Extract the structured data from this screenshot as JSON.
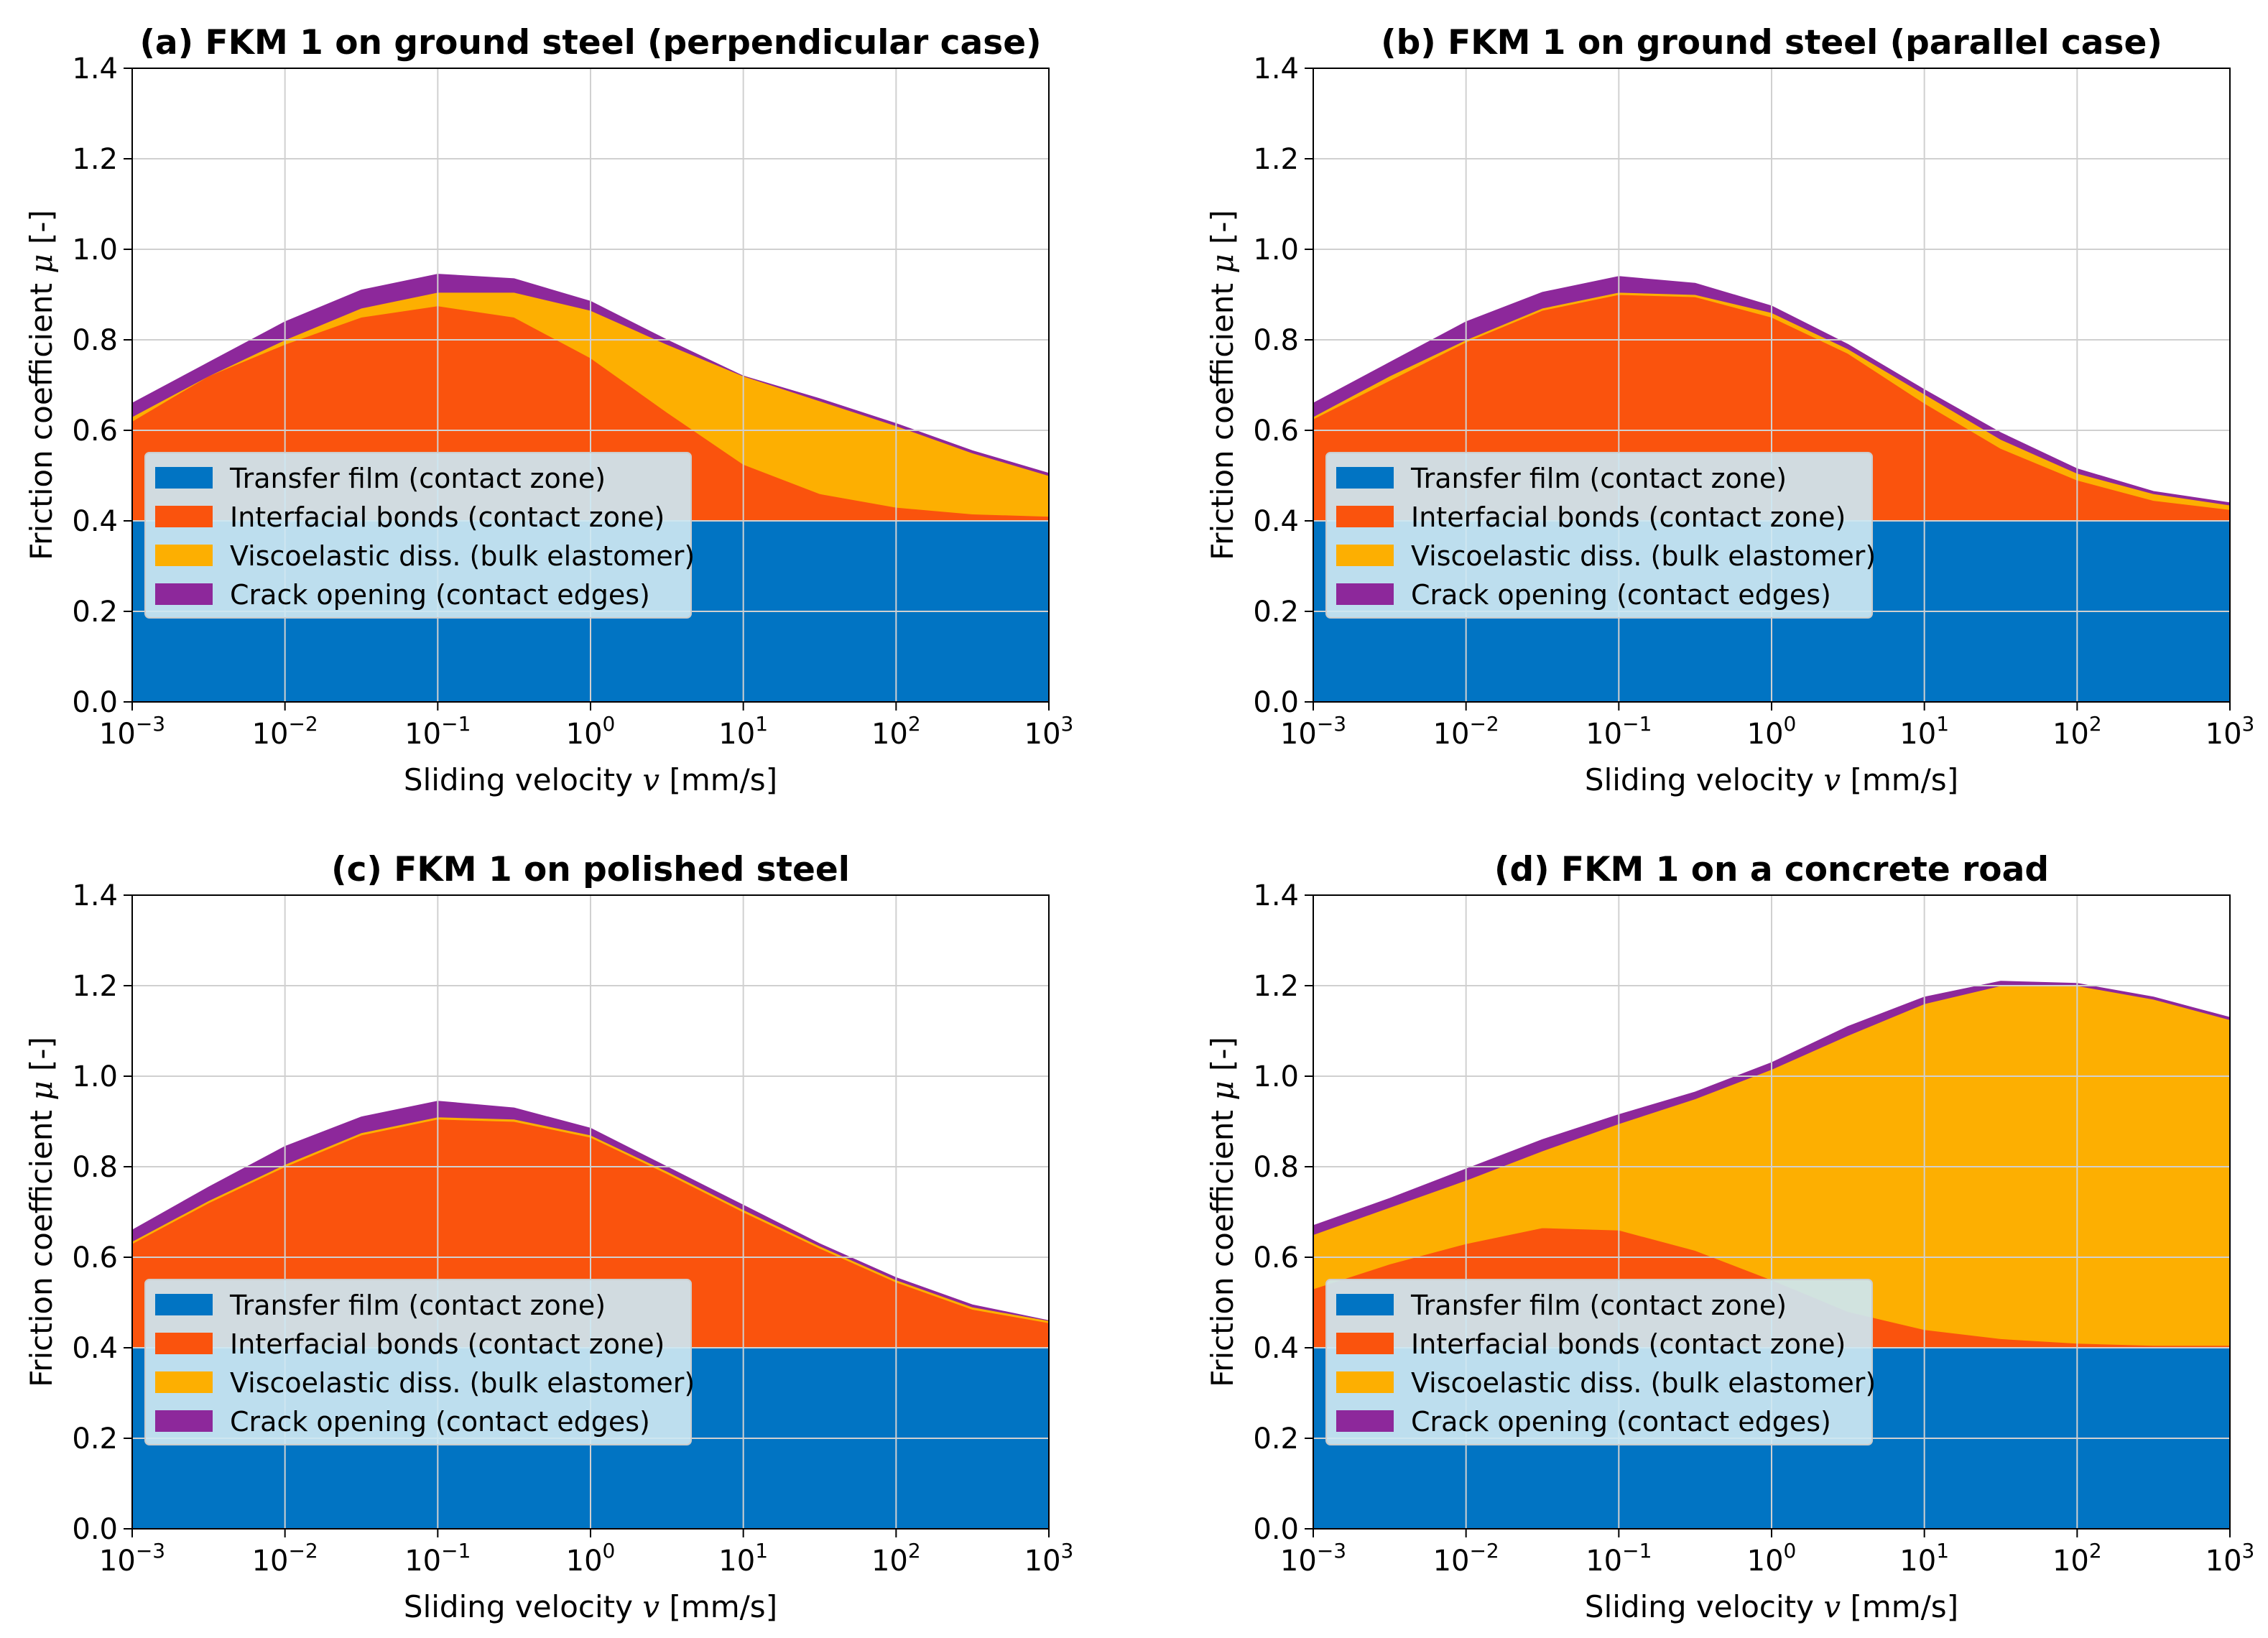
{
  "colors": {
    "transfer": "#0174c3",
    "interfacial": "#fa530d",
    "viscoelastic": "#fdaf01",
    "crack": "#8d289b",
    "grid": "#d0d0d0",
    "legend_bg": "#cde7f2"
  },
  "legend_labels": [
    "Transfer film (contact zone)",
    "Interfacial bonds (contact zone)",
    "Viscoelastic diss. (bulk elastomer)",
    "Crack opening (contact edges)"
  ],
  "chart_data": [
    {
      "type": "area",
      "title": "(a) FKM 1 on ground steel (perpendicular case)",
      "xlabel_prefix": "Sliding velocity ",
      "xlabel_var": "v",
      "xlabel_suffix": " [mm/s]",
      "ylabel_prefix": "Friction coefficient ",
      "ylabel_var": "μ",
      "ylabel_suffix": " [-]",
      "x_scale": "log",
      "xlim": [
        0.001,
        1000
      ],
      "ylim": [
        0,
        1.4
      ],
      "yticks": [
        "0.0",
        "0.2",
        "0.4",
        "0.6",
        "0.8",
        "1.0",
        "1.2",
        "1.4"
      ],
      "xtick_base": "10",
      "xtick_exponents": [
        "−3",
        "−2",
        "−1",
        "0",
        "1",
        "2",
        "3"
      ],
      "legend_position": "lower-left",
      "x": [
        0.001,
        0.00316,
        0.01,
        0.0316,
        0.1,
        0.316,
        1,
        3.16,
        10,
        31.6,
        100,
        316,
        1000
      ],
      "cumulative": {
        "transfer": [
          0.4,
          0.4,
          0.4,
          0.4,
          0.4,
          0.4,
          0.4,
          0.4,
          0.4,
          0.4,
          0.4,
          0.4,
          0.4
        ],
        "interfacial": [
          0.62,
          0.72,
          0.79,
          0.85,
          0.875,
          0.85,
          0.76,
          0.64,
          0.525,
          0.46,
          0.43,
          0.415,
          0.41
        ],
        "viscoelastic": [
          0.63,
          0.72,
          0.8,
          0.87,
          0.905,
          0.905,
          0.865,
          0.79,
          0.72,
          0.665,
          0.61,
          0.55,
          0.5
        ],
        "crack": [
          0.66,
          0.75,
          0.84,
          0.91,
          0.945,
          0.935,
          0.885,
          0.8,
          0.72,
          0.67,
          0.615,
          0.555,
          0.505
        ]
      }
    },
    {
      "type": "area",
      "title": "(b) FKM 1 on ground steel (parallel case)",
      "xlabel_prefix": "Sliding velocity ",
      "xlabel_var": "v",
      "xlabel_suffix": " [mm/s]",
      "ylabel_prefix": "Friction coefficient ",
      "ylabel_var": "μ",
      "ylabel_suffix": " [-]",
      "x_scale": "log",
      "xlim": [
        0.001,
        1000
      ],
      "ylim": [
        0,
        1.4
      ],
      "yticks": [
        "0.0",
        "0.2",
        "0.4",
        "0.6",
        "0.8",
        "1.0",
        "1.2",
        "1.4"
      ],
      "xtick_base": "10",
      "xtick_exponents": [
        "−3",
        "−2",
        "−1",
        "0",
        "1",
        "2",
        "3"
      ],
      "legend_position": "lower-left",
      "x": [
        0.001,
        0.00316,
        0.01,
        0.0316,
        0.1,
        0.316,
        1,
        3.16,
        10,
        31.6,
        100,
        316,
        1000
      ],
      "cumulative": {
        "transfer": [
          0.4,
          0.4,
          0.4,
          0.4,
          0.4,
          0.4,
          0.4,
          0.4,
          0.4,
          0.4,
          0.4,
          0.4,
          0.4
        ],
        "interfacial": [
          0.625,
          0.71,
          0.795,
          0.865,
          0.9,
          0.895,
          0.85,
          0.77,
          0.66,
          0.56,
          0.49,
          0.445,
          0.425
        ],
        "viscoelastic": [
          0.63,
          0.72,
          0.8,
          0.87,
          0.905,
          0.9,
          0.86,
          0.78,
          0.68,
          0.58,
          0.505,
          0.46,
          0.435
        ],
        "crack": [
          0.66,
          0.75,
          0.84,
          0.905,
          0.94,
          0.925,
          0.875,
          0.79,
          0.69,
          0.595,
          0.515,
          0.465,
          0.44
        ]
      }
    },
    {
      "type": "area",
      "title": "(c) FKM 1 on polished steel",
      "xlabel_prefix": "Sliding velocity ",
      "xlabel_var": "v",
      "xlabel_suffix": " [mm/s]",
      "ylabel_prefix": "Friction coefficient ",
      "ylabel_var": "μ",
      "ylabel_suffix": " [-]",
      "x_scale": "log",
      "xlim": [
        0.001,
        1000
      ],
      "ylim": [
        0,
        1.4
      ],
      "yticks": [
        "0.0",
        "0.2",
        "0.4",
        "0.6",
        "0.8",
        "1.0",
        "1.2",
        "1.4"
      ],
      "xtick_base": "10",
      "xtick_exponents": [
        "−3",
        "−2",
        "−1",
        "0",
        "1",
        "2",
        "3"
      ],
      "legend_position": "lower-left",
      "x": [
        0.001,
        0.00316,
        0.01,
        0.0316,
        0.1,
        0.316,
        1,
        3.16,
        10,
        31.6,
        100,
        316,
        1000
      ],
      "cumulative": {
        "transfer": [
          0.4,
          0.4,
          0.4,
          0.4,
          0.4,
          0.4,
          0.4,
          0.4,
          0.4,
          0.4,
          0.4,
          0.4,
          0.4
        ],
        "interfacial": [
          0.63,
          0.72,
          0.8,
          0.87,
          0.905,
          0.9,
          0.865,
          0.785,
          0.7,
          0.62,
          0.545,
          0.485,
          0.455
        ],
        "viscoelastic": [
          0.635,
          0.725,
          0.805,
          0.875,
          0.91,
          0.905,
          0.87,
          0.79,
          0.705,
          0.625,
          0.55,
          0.49,
          0.46
        ],
        "crack": [
          0.66,
          0.755,
          0.845,
          0.91,
          0.945,
          0.93,
          0.885,
          0.8,
          0.715,
          0.63,
          0.555,
          0.495,
          0.46
        ]
      }
    },
    {
      "type": "area",
      "title": "(d) FKM 1 on a concrete road",
      "xlabel_prefix": "Sliding velocity ",
      "xlabel_var": "v",
      "xlabel_suffix": " [mm/s]",
      "ylabel_prefix": "Friction coefficient ",
      "ylabel_var": "μ",
      "ylabel_suffix": " [-]",
      "x_scale": "log",
      "xlim": [
        0.001,
        1000
      ],
      "ylim": [
        0,
        1.4
      ],
      "yticks": [
        "0.0",
        "0.2",
        "0.4",
        "0.6",
        "0.8",
        "1.0",
        "1.2",
        "1.4"
      ],
      "xtick_base": "10",
      "xtick_exponents": [
        "−3",
        "−2",
        "−1",
        "0",
        "1",
        "2",
        "3"
      ],
      "legend_position": "lower-left",
      "x": [
        0.001,
        0.00316,
        0.01,
        0.0316,
        0.1,
        0.316,
        1,
        3.16,
        10,
        31.6,
        100,
        316,
        1000
      ],
      "cumulative": {
        "transfer": [
          0.4,
          0.4,
          0.4,
          0.4,
          0.4,
          0.4,
          0.4,
          0.4,
          0.4,
          0.4,
          0.4,
          0.4,
          0.4
        ],
        "interfacial": [
          0.53,
          0.585,
          0.63,
          0.665,
          0.66,
          0.615,
          0.55,
          0.48,
          0.44,
          0.42,
          0.41,
          0.405,
          0.405
        ],
        "viscoelastic": [
          0.65,
          0.71,
          0.77,
          0.835,
          0.895,
          0.95,
          1.015,
          1.09,
          1.16,
          1.2,
          1.2,
          1.17,
          1.125
        ],
        "crack": [
          0.67,
          0.73,
          0.795,
          0.86,
          0.915,
          0.965,
          1.03,
          1.11,
          1.175,
          1.21,
          1.205,
          1.175,
          1.13
        ]
      }
    }
  ]
}
